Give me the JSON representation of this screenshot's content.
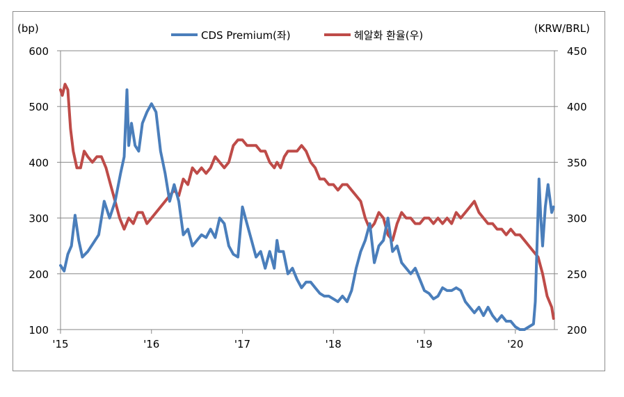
{
  "chart_data": {
    "type": "line",
    "left_unit": "(bp)",
    "right_unit": "(KRW/BRL)",
    "left_axis": {
      "min": 100,
      "max": 600,
      "ticks": [
        "600",
        "500",
        "400",
        "300",
        "200",
        "100"
      ]
    },
    "right_axis": {
      "min": 200,
      "max": 450,
      "ticks": [
        "450",
        "400",
        "350",
        "300",
        "250",
        "200"
      ]
    },
    "x_ticks": [
      "'15",
      "'16",
      "'17",
      "'18",
      "'19",
      "'20"
    ],
    "grid": true,
    "legend_position": "top",
    "series": [
      {
        "name": "CDS Premium(좌)",
        "axis": "left",
        "color": "#4a7ebb",
        "x": [
          2015.0,
          2015.04,
          2015.08,
          2015.12,
          2015.16,
          2015.2,
          2015.24,
          2015.3,
          2015.36,
          2015.42,
          2015.48,
          2015.54,
          2015.6,
          2015.66,
          2015.7,
          2015.73,
          2015.75,
          2015.78,
          2015.82,
          2015.86,
          2015.9,
          2015.95,
          2016.0,
          2016.05,
          2016.1,
          2016.15,
          2016.2,
          2016.25,
          2016.3,
          2016.35,
          2016.4,
          2016.45,
          2016.5,
          2016.55,
          2016.6,
          2016.65,
          2016.7,
          2016.75,
          2016.8,
          2016.85,
          2016.9,
          2016.95,
          2017.0,
          2017.05,
          2017.1,
          2017.15,
          2017.2,
          2017.25,
          2017.3,
          2017.35,
          2017.38,
          2017.4,
          2017.45,
          2017.5,
          2017.55,
          2017.6,
          2017.65,
          2017.7,
          2017.75,
          2017.8,
          2017.85,
          2017.9,
          2017.95,
          2018.0,
          2018.05,
          2018.1,
          2018.15,
          2018.2,
          2018.25,
          2018.3,
          2018.35,
          2018.4,
          2018.45,
          2018.5,
          2018.55,
          2018.6,
          2018.65,
          2018.7,
          2018.75,
          2018.8,
          2018.85,
          2018.9,
          2018.95,
          2019.0,
          2019.05,
          2019.1,
          2019.15,
          2019.2,
          2019.25,
          2019.3,
          2019.35,
          2019.4,
          2019.45,
          2019.5,
          2019.55,
          2019.6,
          2019.65,
          2019.7,
          2019.75,
          2019.8,
          2019.85,
          2019.9,
          2019.95,
          2020.0,
          2020.05,
          2020.1,
          2020.15,
          2020.2,
          2020.22,
          2020.24,
          2020.26,
          2020.28,
          2020.3,
          2020.33,
          2020.36,
          2020.4,
          2020.42
        ],
        "values": [
          215,
          205,
          235,
          250,
          305,
          260,
          230,
          240,
          255,
          270,
          330,
          300,
          330,
          380,
          410,
          530,
          430,
          470,
          430,
          420,
          470,
          490,
          505,
          490,
          420,
          380,
          330,
          360,
          330,
          270,
          280,
          250,
          260,
          270,
          265,
          280,
          265,
          300,
          290,
          250,
          235,
          230,
          320,
          290,
          260,
          230,
          240,
          210,
          240,
          210,
          260,
          240,
          240,
          200,
          210,
          190,
          175,
          185,
          185,
          175,
          165,
          160,
          160,
          155,
          150,
          160,
          150,
          170,
          210,
          240,
          260,
          290,
          220,
          250,
          260,
          300,
          240,
          250,
          220,
          210,
          200,
          210,
          190,
          170,
          165,
          155,
          160,
          175,
          170,
          170,
          175,
          170,
          150,
          140,
          130,
          140,
          125,
          140,
          125,
          115,
          125,
          115,
          115,
          105,
          100,
          100,
          105,
          110,
          150,
          260,
          370,
          300,
          250,
          320,
          360,
          310,
          320
        ]
      },
      {
        "name": "헤알화 환율(우)",
        "axis": "right",
        "color": "#be4b48",
        "x": [
          2015.0,
          2015.02,
          2015.05,
          2015.08,
          2015.11,
          2015.14,
          2015.18,
          2015.22,
          2015.26,
          2015.3,
          2015.35,
          2015.4,
          2015.45,
          2015.5,
          2015.55,
          2015.6,
          2015.65,
          2015.7,
          2015.75,
          2015.8,
          2015.85,
          2015.9,
          2015.95,
          2016.0,
          2016.05,
          2016.1,
          2016.15,
          2016.2,
          2016.25,
          2016.3,
          2016.35,
          2016.4,
          2016.45,
          2016.5,
          2016.55,
          2016.6,
          2016.65,
          2016.7,
          2016.75,
          2016.8,
          2016.85,
          2016.9,
          2016.95,
          2017.0,
          2017.05,
          2017.1,
          2017.15,
          2017.2,
          2017.25,
          2017.3,
          2017.35,
          2017.38,
          2017.42,
          2017.46,
          2017.5,
          2017.55,
          2017.6,
          2017.65,
          2017.7,
          2017.75,
          2017.8,
          2017.85,
          2017.9,
          2017.95,
          2018.0,
          2018.05,
          2018.1,
          2018.15,
          2018.2,
          2018.25,
          2018.3,
          2018.35,
          2018.4,
          2018.45,
          2018.5,
          2018.55,
          2018.6,
          2018.65,
          2018.7,
          2018.75,
          2018.8,
          2018.85,
          2018.9,
          2018.95,
          2019.0,
          2019.05,
          2019.1,
          2019.15,
          2019.2,
          2019.25,
          2019.3,
          2019.35,
          2019.4,
          2019.45,
          2019.5,
          2019.55,
          2019.6,
          2019.65,
          2019.7,
          2019.75,
          2019.8,
          2019.85,
          2019.9,
          2019.95,
          2020.0,
          2020.05,
          2020.1,
          2020.15,
          2020.2,
          2020.25,
          2020.3,
          2020.35,
          2020.4,
          2020.42
        ],
        "values": [
          415,
          410,
          420,
          415,
          380,
          360,
          345,
          345,
          360,
          355,
          350,
          355,
          355,
          345,
          330,
          315,
          300,
          290,
          300,
          295,
          305,
          305,
          295,
          300,
          305,
          310,
          315,
          320,
          325,
          320,
          335,
          330,
          345,
          340,
          345,
          340,
          345,
          355,
          350,
          345,
          350,
          365,
          370,
          370,
          365,
          365,
          365,
          360,
          360,
          350,
          345,
          350,
          345,
          355,
          360,
          360,
          360,
          365,
          360,
          350,
          345,
          335,
          335,
          330,
          330,
          325,
          330,
          330,
          325,
          320,
          315,
          300,
          290,
          295,
          305,
          300,
          285,
          280,
          295,
          305,
          300,
          300,
          295,
          295,
          300,
          300,
          295,
          300,
          295,
          300,
          295,
          305,
          300,
          305,
          310,
          315,
          305,
          300,
          295,
          295,
          290,
          290,
          285,
          290,
          285,
          285,
          280,
          275,
          270,
          265,
          250,
          230,
          220,
          210
        ]
      }
    ]
  }
}
